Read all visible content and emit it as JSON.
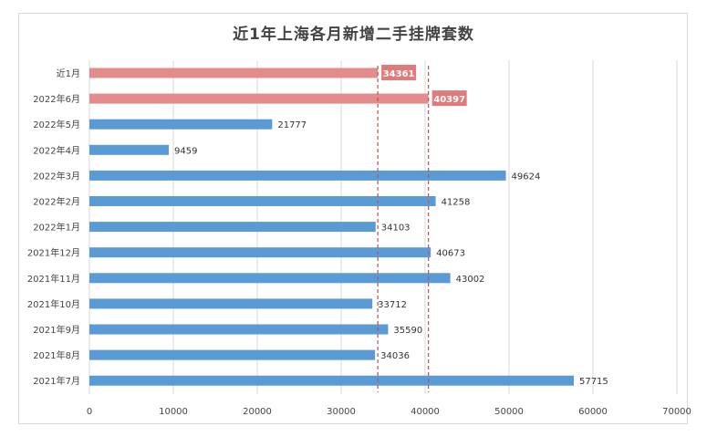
{
  "chart_data": {
    "type": "bar",
    "orientation": "horizontal",
    "title": "近1年上海各月新增二手挂牌套数",
    "categories": [
      "近1月",
      "2022年6月",
      "2022年5月",
      "2022年4月",
      "2022年3月",
      "2022年2月",
      "2022年1月",
      "2021年12月",
      "2021年11月",
      "2021年10月",
      "2021年9月",
      "2021年8月",
      "2021年7月"
    ],
    "values": [
      34361,
      40397,
      21777,
      9459,
      49624,
      41258,
      34103,
      40673,
      43002,
      33712,
      35590,
      34036,
      57715
    ],
    "highlighted": [
      "近1月",
      "2022年6月"
    ],
    "reference_lines": [
      34361,
      40397
    ],
    "xlim": [
      0,
      70000
    ],
    "xticks": [
      0,
      10000,
      20000,
      30000,
      40000,
      50000,
      60000,
      70000
    ],
    "grid": true,
    "legend": "none",
    "colors": {
      "bar": "#5b9bd5",
      "highlight": "#e38c8c",
      "highlight_label_bg": "#e07b7b",
      "refline": "#c0504d",
      "grid": "#d9d9d9"
    }
  }
}
